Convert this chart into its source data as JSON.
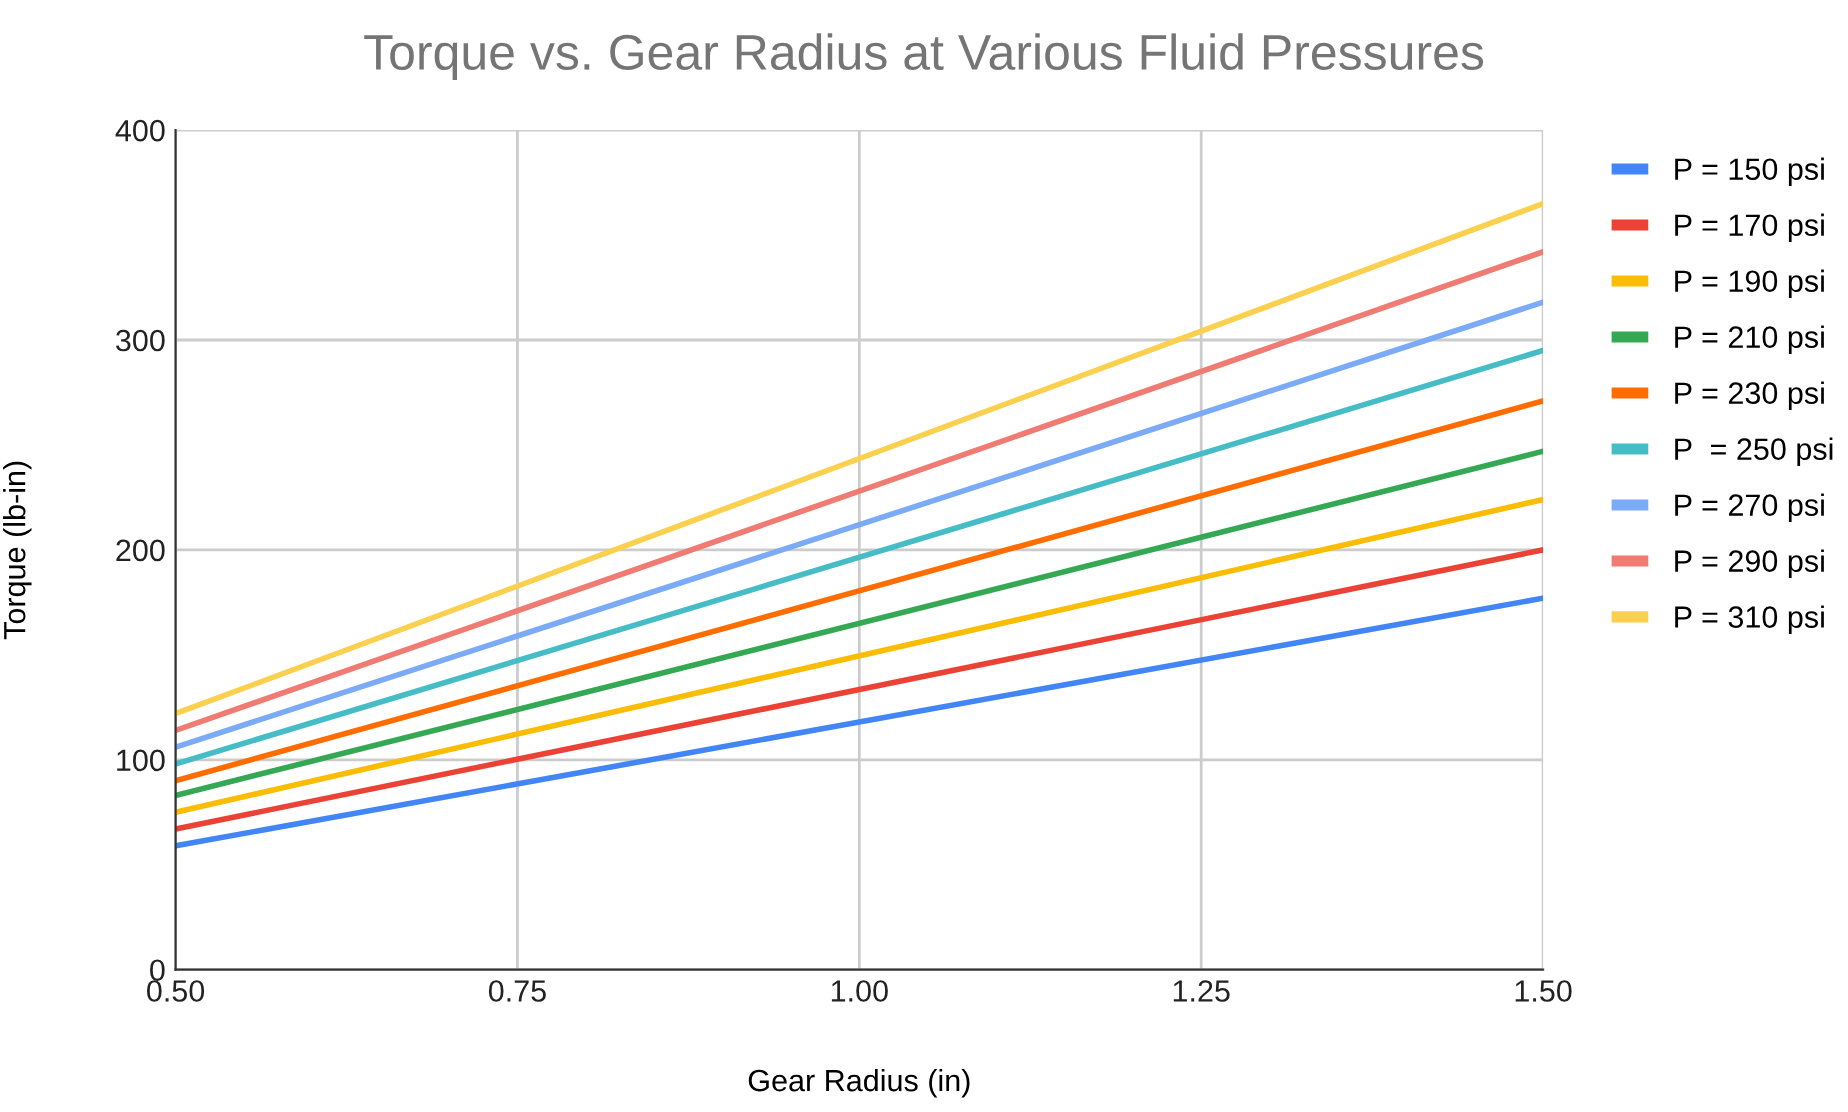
{
  "chart_data": {
    "type": "line",
    "title": "Torque vs. Gear Radius at Various Fluid Pressures",
    "xlabel": "Gear Radius (in)",
    "ylabel": "Torque (lb-in)",
    "x": [
      0.5,
      1.5
    ],
    "series": [
      {
        "name": "P = 150 psi",
        "color": "#4285f4",
        "values": [
          59,
          177
        ]
      },
      {
        "name": "P = 170 psi",
        "color": "#ea4335",
        "values": [
          67,
          200
        ]
      },
      {
        "name": "P = 190 psi",
        "color": "#fbbc04",
        "values": [
          75,
          224
        ]
      },
      {
        "name": "P = 210 psi",
        "color": "#34a853",
        "values": [
          83,
          247
        ]
      },
      {
        "name": "P = 230 psi",
        "color": "#ff6d01",
        "values": [
          90,
          271
        ]
      },
      {
        "name": "P  = 250 psi",
        "color": "#46bdc6",
        "values": [
          98,
          295
        ]
      },
      {
        "name": "P = 270 psi",
        "color": "#7baaf7",
        "values": [
          106,
          318
        ]
      },
      {
        "name": "P = 290 psi",
        "color": "#f07b72",
        "values": [
          114,
          342
        ]
      },
      {
        "name": "P = 310 psi",
        "color": "#fcd04f",
        "values": [
          122,
          365
        ]
      }
    ],
    "xlim": [
      0.5,
      1.5
    ],
    "xticks": [
      {
        "value": 0.5,
        "label": "0.50"
      },
      {
        "value": 0.75,
        "label": "0.75"
      },
      {
        "value": 1.0,
        "label": "1.00"
      },
      {
        "value": 1.25,
        "label": "1.25"
      },
      {
        "value": 1.5,
        "label": "1.50"
      }
    ],
    "ylim": [
      0,
      400
    ],
    "yticks": [
      0,
      100,
      200,
      300,
      400
    ],
    "grid": true,
    "legend": "top right",
    "marker": "none",
    "line_style": "solid"
  }
}
